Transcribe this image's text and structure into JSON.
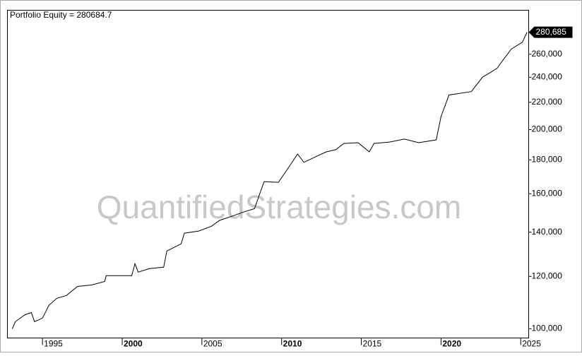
{
  "chart_data": {
    "type": "line",
    "title": "Portfolio Equity = 280684.7",
    "watermark": "QuantifiedStrategies.com",
    "log_scale": true,
    "last_value_label": "280,685",
    "x": [
      1993.1,
      1993.3,
      1993.9,
      1994.3,
      1994.5,
      1995,
      1995.4,
      1995.9,
      1996.5,
      1997.2,
      1998.1,
      1998.9,
      1999,
      2000.6,
      2000.8,
      2001,
      2001.7,
      2002.6,
      2002.8,
      2003.7,
      2003.9,
      2004.8,
      2005.6,
      2006.1,
      2007,
      2007.6,
      2008.3,
      2008.9,
      2009.8,
      2010.5,
      2011,
      2011.4,
      2012.1,
      2012.8,
      2013.4,
      2013.9,
      2014.8,
      2015.5,
      2015.8,
      2016.8,
      2017.7,
      2018.6,
      2019.7,
      2020,
      2020.5,
      2021.9,
      2022.6,
      2023.5,
      2024.4,
      2025.1,
      2025.4
    ],
    "series": [
      {
        "name": "Portfolio Equity",
        "color": "#000000",
        "values": [
          100000,
          102500,
          105000,
          105800,
          102500,
          103800,
          108500,
          111200,
          112300,
          115900,
          116500,
          117900,
          120300,
          120300,
          125400,
          121800,
          123300,
          123900,
          131100,
          134400,
          139500,
          140500,
          142900,
          145800,
          148300,
          150100,
          151900,
          166900,
          166500,
          176200,
          183700,
          178500,
          181800,
          185100,
          186500,
          190600,
          191100,
          185100,
          190600,
          191600,
          193500,
          191100,
          193000,
          209300,
          225600,
          228300,
          240000,
          247400,
          264600,
          271100,
          280684.7
        ]
      }
    ],
    "xlim": [
      1992.8,
      2025.5
    ],
    "xticks": [
      1995,
      2000,
      2005,
      2010,
      2015,
      2020,
      2025
    ],
    "ylim": [
      96850,
      303000
    ],
    "yticks": [
      {
        "value": 100000,
        "label": "100,000"
      },
      {
        "value": 120000,
        "label": "120,000"
      },
      {
        "value": 140000,
        "label": "140,000"
      },
      {
        "value": 160000,
        "label": "160,000"
      },
      {
        "value": 180000,
        "label": "180,000"
      },
      {
        "value": 200000,
        "label": "200,000"
      },
      {
        "value": 220000,
        "label": "220,000"
      },
      {
        "value": 240000,
        "label": "240,000"
      },
      {
        "value": 260000,
        "label": "260,000"
      }
    ]
  }
}
